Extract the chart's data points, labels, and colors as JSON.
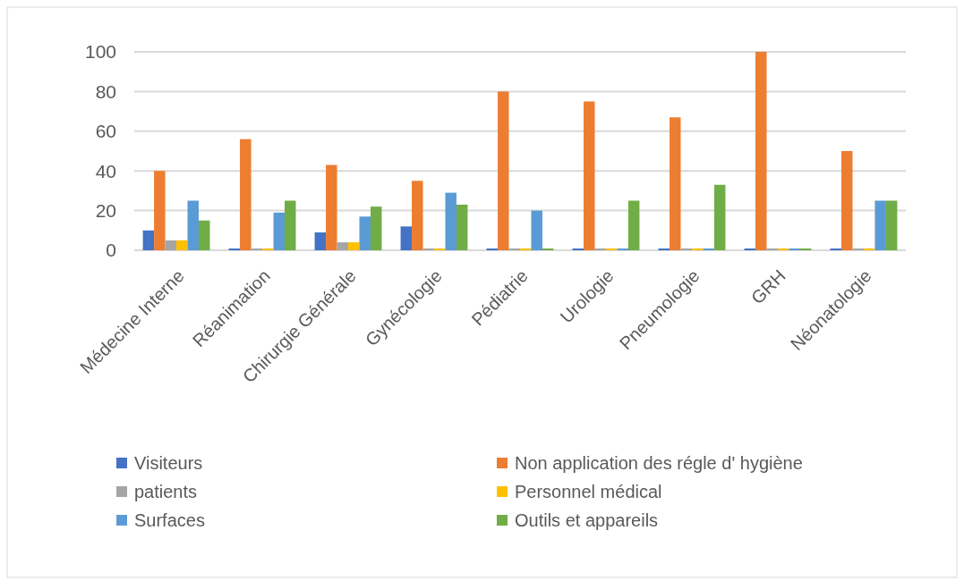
{
  "chart_data": {
    "type": "bar",
    "categories": [
      "Médecine Interne",
      "Réanimation",
      "Chirurgie Générale",
      "Gynécologie",
      "Pédiatrie",
      "Urologie",
      "Pneumologie",
      "GRH",
      "Néonatologie"
    ],
    "series": [
      {
        "name": "Visiteurs",
        "color": "#4472c4",
        "values": [
          10,
          0,
          9,
          12,
          0,
          0,
          0,
          0,
          0
        ]
      },
      {
        "name": "Non application des régle d' hygiène",
        "color": "#ed7d31",
        "values": [
          40,
          56,
          43,
          35,
          80,
          75,
          67,
          100,
          50
        ]
      },
      {
        "name": "patients",
        "color": "#a5a5a5",
        "values": [
          5,
          0,
          4,
          0,
          0,
          0,
          0,
          0,
          0
        ]
      },
      {
        "name": "Personnel médical",
        "color": "#ffc000",
        "values": [
          5,
          0,
          4,
          0,
          0,
          0,
          0,
          0,
          0
        ]
      },
      {
        "name": "Surfaces",
        "color": "#5b9bd5",
        "values": [
          25,
          19,
          17,
          29,
          20,
          0,
          0,
          0,
          25
        ]
      },
      {
        "name": "Outils et appareils",
        "color": "#70ad47",
        "values": [
          15,
          25,
          22,
          23,
          0,
          25,
          33,
          0,
          25
        ]
      }
    ],
    "ylim": [
      0,
      100
    ],
    "yticks": [
      0,
      20,
      40,
      60,
      80,
      100
    ],
    "grid": "y",
    "legend": "bottom"
  }
}
